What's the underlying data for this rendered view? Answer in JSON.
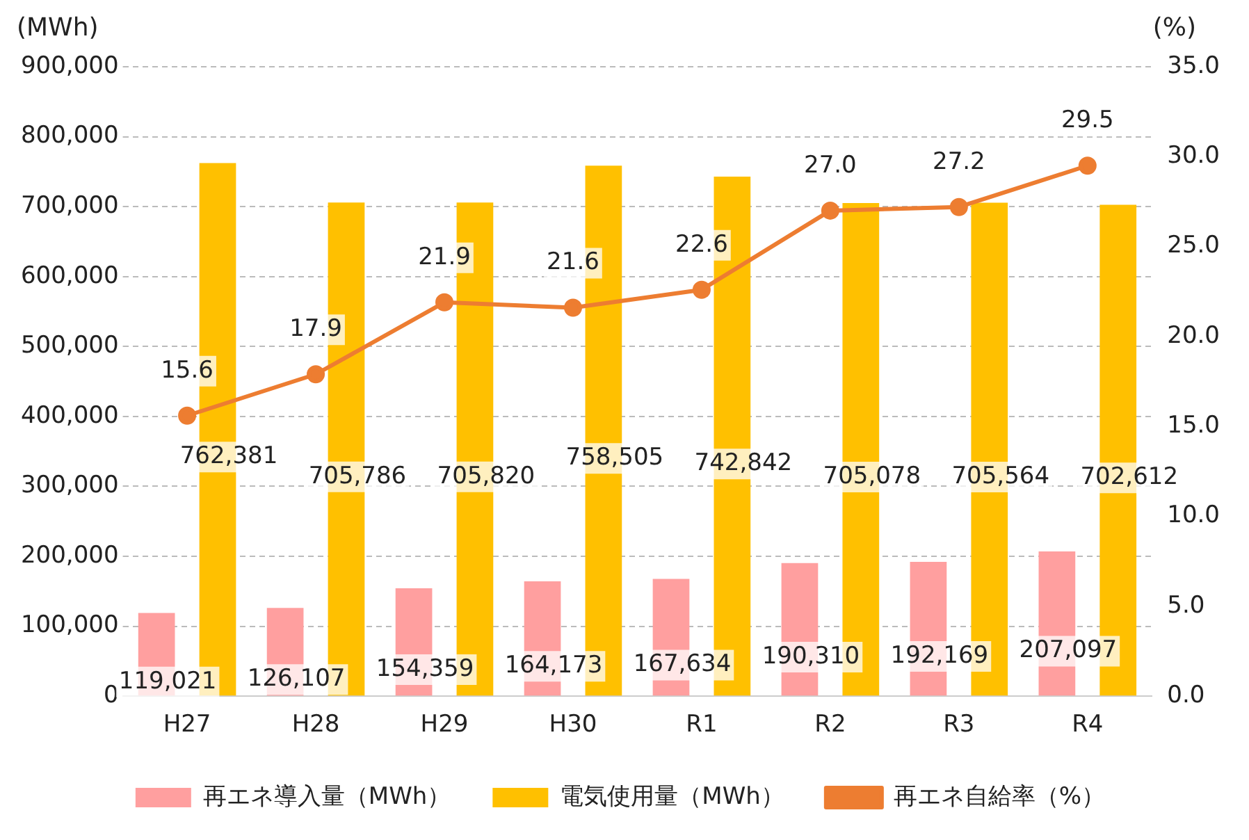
{
  "chart_data": {
    "type": "bar",
    "ylabel": "(MWh)",
    "y2label": "(%)",
    "categories": [
      "H27",
      "H28",
      "H29",
      "H30",
      "R1",
      "R2",
      "R3",
      "R4"
    ],
    "series": [
      {
        "name": "再エネ導入量（MWh）",
        "color": "#ff9f9f",
        "values": [
          119021,
          126107,
          154359,
          164173,
          167634,
          190310,
          192169,
          207097
        ],
        "value_labels": [
          "119,021",
          "126,107",
          "154,359",
          "164,173",
          "167,634",
          "190,310",
          "192,169",
          "207,097"
        ]
      },
      {
        "name": "電気使用量（MWh）",
        "color": "#ffc000",
        "values": [
          762381,
          705786,
          705820,
          758505,
          742842,
          705078,
          705564,
          702612
        ],
        "value_labels": [
          "762,381",
          "705,786",
          "705,820",
          "758,505",
          "742,842",
          "705,078",
          "705,564",
          "702,612"
        ]
      },
      {
        "name": "再エネ自給率（%）",
        "type": "line",
        "axis": "y2",
        "color": "#ed7d31",
        "marker": "circle",
        "values": [
          15.6,
          17.9,
          21.9,
          21.6,
          22.6,
          27.0,
          27.2,
          29.5
        ],
        "value_labels": [
          "15.6",
          "17.9",
          "21.9",
          "21.6",
          "22.6",
          "27.0",
          "27.2",
          "29.5"
        ]
      }
    ],
    "ylim": [
      0,
      900000
    ],
    "yticks": [
      {
        "value": 0,
        "label": "0"
      },
      {
        "value": 100000,
        "label": "100,000"
      },
      {
        "value": 200000,
        "label": "200,000"
      },
      {
        "value": 300000,
        "label": "300,000"
      },
      {
        "value": 400000,
        "label": "400,000"
      },
      {
        "value": 500000,
        "label": "500,000"
      },
      {
        "value": 600000,
        "label": "600,000"
      },
      {
        "value": 700000,
        "label": "700,000"
      },
      {
        "value": 800000,
        "label": "800,000"
      },
      {
        "value": 900000,
        "label": "900,000"
      }
    ],
    "y2lim": [
      0,
      35
    ],
    "y2ticks": [
      {
        "value": 0,
        "label": "0.0"
      },
      {
        "value": 5,
        "label": "5.0"
      },
      {
        "value": 10,
        "label": "10.0"
      },
      {
        "value": 15,
        "label": "15.0"
      },
      {
        "value": 20,
        "label": "20.0"
      },
      {
        "value": 25,
        "label": "25.0"
      },
      {
        "value": 30,
        "label": "30.0"
      },
      {
        "value": 35,
        "label": "35.0"
      }
    ],
    "grid": "y",
    "legend": "bottom"
  }
}
